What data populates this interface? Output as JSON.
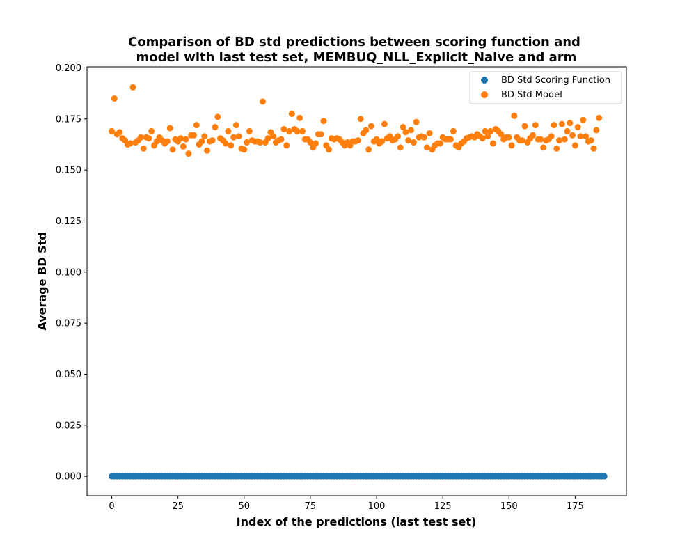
{
  "chart_data": {
    "type": "scatter",
    "title_lines": [
      "Comparison of BD std predictions between scoring function and",
      "model with last test set, MEMBUQ_NLL_Explicit_Naive and arm"
    ],
    "xlabel": "Index of the predictions (last test set)",
    "ylabel": "Average BD Std",
    "xlim": [
      -9.35,
      194.35
    ],
    "ylim": [
      -0.0095,
      0.2005
    ],
    "xticks": [
      0,
      25,
      50,
      75,
      100,
      125,
      150,
      175
    ],
    "xtick_labels": [
      "0",
      "25",
      "50",
      "75",
      "100",
      "125",
      "150",
      "175"
    ],
    "yticks": [
      0.0,
      0.025,
      0.05,
      0.075,
      0.1,
      0.125,
      0.15,
      0.175,
      0.2
    ],
    "ytick_labels": [
      "0.000",
      "0.025",
      "0.050",
      "0.075",
      "0.100",
      "0.125",
      "0.150",
      "0.175",
      "0.200"
    ],
    "legend_position": "upper right",
    "grid": false,
    "series": [
      {
        "name": "BD Std Scoring Function",
        "color": "#1f77b4",
        "x_start": 0,
        "x_end": 186,
        "constant_y": 0.0
      },
      {
        "name": "BD Std Model",
        "color": "#ff7f0e",
        "y": [
          0.169,
          0.185,
          0.1675,
          0.1685,
          0.1655,
          0.1645,
          0.1625,
          0.163,
          0.1905,
          0.1635,
          0.1645,
          0.166,
          0.1605,
          0.166,
          0.1655,
          0.169,
          0.162,
          0.164,
          0.166,
          0.1645,
          0.163,
          0.164,
          0.1705,
          0.16,
          0.165,
          0.164,
          0.1655,
          0.1615,
          0.165,
          0.158,
          0.167,
          0.167,
          0.172,
          0.1625,
          0.164,
          0.1665,
          0.1595,
          0.164,
          0.1645,
          0.171,
          0.176,
          0.1655,
          0.1645,
          0.163,
          0.169,
          0.162,
          0.166,
          0.172,
          0.1665,
          0.1605,
          0.16,
          0.1635,
          0.169,
          0.1645,
          0.164,
          0.164,
          0.1635,
          0.1835,
          0.1635,
          0.1655,
          0.1685,
          0.1665,
          0.1635,
          0.1645,
          0.165,
          0.17,
          0.162,
          0.169,
          0.1775,
          0.17,
          0.169,
          0.1755,
          0.169,
          0.165,
          0.165,
          0.1635,
          0.161,
          0.163,
          0.1675,
          0.1675,
          0.174,
          0.162,
          0.16,
          0.1655,
          0.165,
          0.1655,
          0.165,
          0.1635,
          0.162,
          0.1635,
          0.162,
          0.164,
          0.164,
          0.1645,
          0.175,
          0.168,
          0.1695,
          0.16,
          0.1715,
          0.164,
          0.165,
          0.163,
          0.164,
          0.1725,
          0.1655,
          0.1665,
          0.1645,
          0.165,
          0.1665,
          0.161,
          0.171,
          0.1685,
          0.1645,
          0.1695,
          0.1635,
          0.1735,
          0.166,
          0.1665,
          0.166,
          0.161,
          0.168,
          0.16,
          0.162,
          0.163,
          0.163,
          0.166,
          0.165,
          0.165,
          0.165,
          0.169,
          0.162,
          0.161,
          0.163,
          0.164,
          0.1655,
          0.166,
          0.1665,
          0.166,
          0.1675,
          0.1665,
          0.1655,
          0.169,
          0.1665,
          0.169,
          0.163,
          0.17,
          0.169,
          0.1675,
          0.165,
          0.166,
          0.166,
          0.162,
          0.1765,
          0.166,
          0.1645,
          0.1645,
          0.1715,
          0.1635,
          0.1655,
          0.167,
          0.172,
          0.165,
          0.165,
          0.161,
          0.1645,
          0.165,
          0.1665,
          0.172,
          0.1605,
          0.1645,
          0.1725,
          0.165,
          0.169,
          0.173,
          0.167,
          0.162,
          0.171,
          0.1665,
          0.1745,
          0.1665,
          0.164,
          0.1645,
          0.1605,
          0.1695,
          0.1755
        ]
      }
    ]
  }
}
